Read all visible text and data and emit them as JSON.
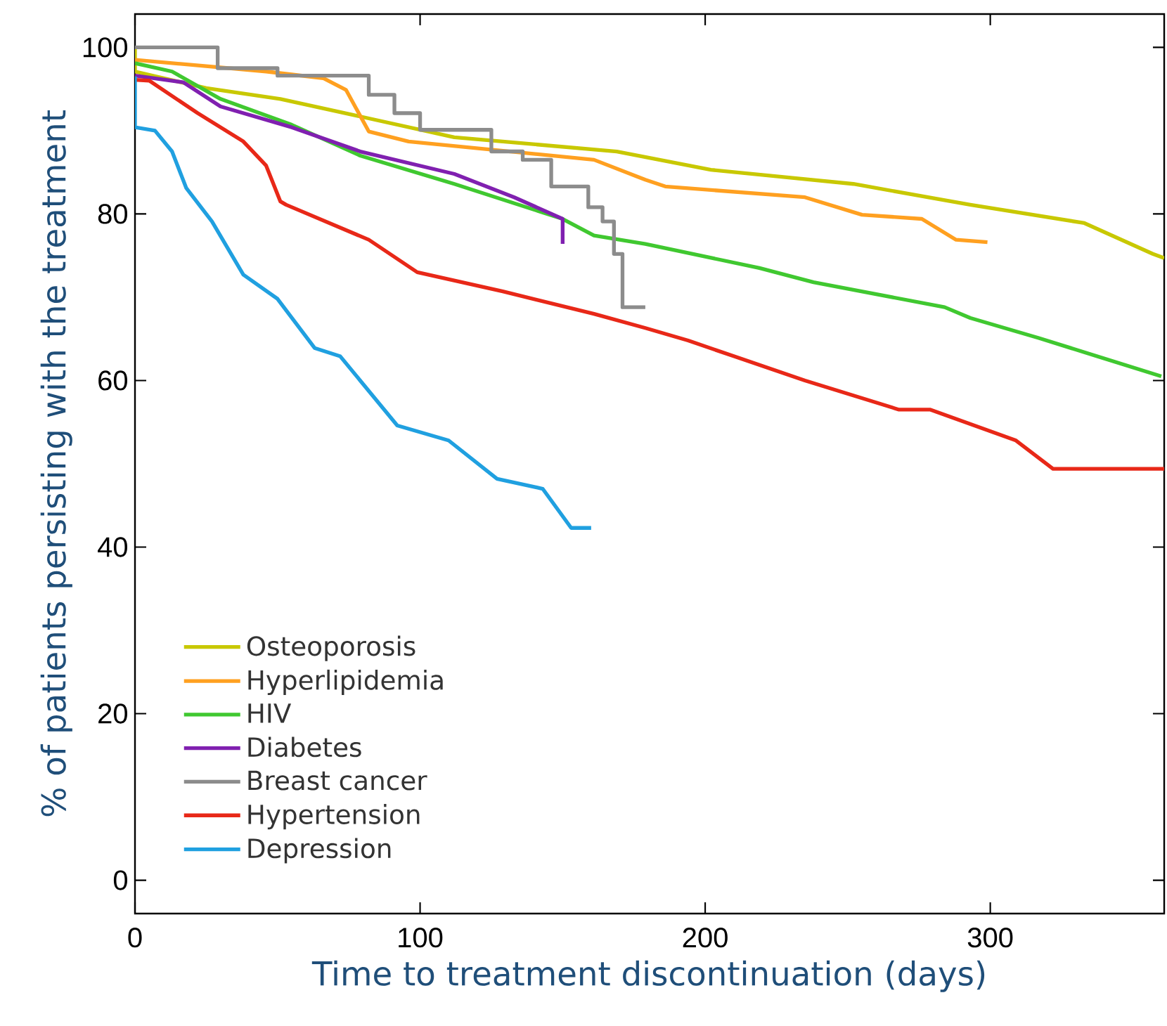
{
  "chart_data": {
    "type": "line",
    "xlabel": "Time to treatment discontinuation (days)",
    "ylabel": "% of patients persisting with the treatment",
    "xlim": [
      0,
      361
    ],
    "ylim": [
      -4,
      104
    ],
    "xticks": [
      0,
      100,
      200,
      300
    ],
    "yticks": [
      0,
      20,
      40,
      60,
      80,
      100
    ],
    "grid": false,
    "legend": "bottom left",
    "series": [
      {
        "name": "Osteoporosis",
        "color": "#c8c800",
        "x": [
          0,
          0,
          25,
          51,
          79,
          112,
          169,
          202,
          252,
          293,
          333,
          357,
          361
        ],
        "values": [
          100,
          97.1,
          95.1,
          93.8,
          91.7,
          89.2,
          87.5,
          85.3,
          83.6,
          81.1,
          78.9,
          75.2,
          74.7
        ]
      },
      {
        "name": "Hyperlipidemia",
        "color": "#ffa020",
        "x": [
          0,
          46,
          66,
          74,
          82,
          96,
          161,
          179,
          186,
          235,
          255,
          276,
          288,
          299
        ],
        "values": [
          98.5,
          97.1,
          96.3,
          94.9,
          89.9,
          88.7,
          86.5,
          84.1,
          83.3,
          82.0,
          79.9,
          79.4,
          76.9,
          76.6
        ]
      },
      {
        "name": "HIV",
        "color": "#40c830",
        "x": [
          0,
          13,
          30,
          55,
          79,
          112,
          150,
          161,
          179,
          219,
          238,
          284,
          293,
          317,
          360
        ],
        "values": [
          98.1,
          97.1,
          93.8,
          90.7,
          87.0,
          83.6,
          79.4,
          77.4,
          76.4,
          73.5,
          71.8,
          68.8,
          67.5,
          65.1,
          60.5
        ]
      },
      {
        "name": "Diabetes",
        "color": "#8020b0",
        "x": [
          0,
          17,
          30,
          55,
          79,
          112,
          133,
          150,
          150
        ],
        "values": [
          96.6,
          95.8,
          92.9,
          90.4,
          87.5,
          84.8,
          82.0,
          79.4,
          76.4
        ]
      },
      {
        "name": "Breast cancer",
        "type": "step",
        "color": "#8c8c8c",
        "x": [
          0,
          29,
          50,
          82,
          91,
          100,
          125,
          136,
          146,
          159,
          164,
          168,
          171,
          179
        ],
        "values": [
          100,
          97.5,
          96.6,
          94.3,
          92.1,
          90.1,
          87.5,
          86.5,
          83.3,
          80.8,
          79.1,
          75.2,
          68.8,
          68.8
        ]
      },
      {
        "name": "Hypertension",
        "color": "#e82818",
        "x": [
          0,
          5,
          22,
          38,
          46,
          51,
          53,
          82,
          99,
          129,
          161,
          179,
          194,
          235,
          268,
          279,
          309,
          322,
          361
        ],
        "values": [
          96.1,
          96.0,
          92.1,
          88.7,
          85.8,
          81.5,
          81.1,
          76.9,
          73.0,
          70.7,
          68.0,
          66.3,
          64.8,
          60.0,
          56.5,
          56.5,
          52.8,
          49.4,
          49.4
        ]
      },
      {
        "name": "Depression",
        "color": "#20a0e0",
        "x": [
          0,
          0,
          7,
          13,
          18,
          27,
          38,
          50,
          63,
          72,
          92,
          110,
          127,
          143,
          153,
          160
        ],
        "values": [
          96.5,
          90.4,
          90.0,
          87.5,
          83.1,
          79.1,
          72.7,
          69.8,
          63.9,
          62.9,
          54.6,
          52.8,
          48.2,
          47.0,
          42.3,
          42.3
        ]
      }
    ]
  }
}
